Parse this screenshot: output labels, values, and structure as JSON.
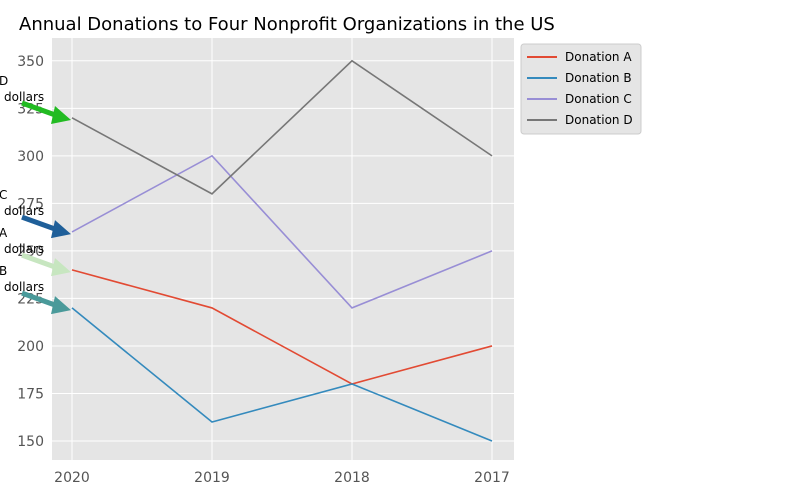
{
  "chart_data": {
    "type": "line",
    "title": "Annual Donations to Four Nonprofit Organizations in the US",
    "xlabel": "",
    "ylabel": "",
    "categories": [
      "2020",
      "2019",
      "2018",
      "2017"
    ],
    "ylim": [
      140,
      362
    ],
    "yticks": [
      150,
      175,
      200,
      225,
      250,
      275,
      300,
      325,
      350
    ],
    "grid": true,
    "legend_position": "outside upper right",
    "series": [
      {
        "name": "Donation A",
        "values": [
          240,
          220,
          180,
          200
        ],
        "color": "#E24A33"
      },
      {
        "name": "Donation B",
        "values": [
          220,
          160,
          180,
          150
        ],
        "color": "#348ABD"
      },
      {
        "name": "Donation C",
        "values": [
          260,
          300,
          220,
          250
        ],
        "color": "#988ED5"
      },
      {
        "name": "Donation D",
        "values": [
          320,
          280,
          350,
          300
        ],
        "color": "#777777"
      }
    ],
    "annotations": [
      {
        "lines": [
          "D",
          "dollars"
        ],
        "y": 322,
        "arrow_color": "#22bb22"
      },
      {
        "lines": [
          "C",
          "dollars"
        ],
        "y": 262,
        "arrow_color": "#1f5f99"
      },
      {
        "lines": [
          "A",
          "dollars"
        ],
        "y": 242,
        "arrow_color": "#c7e6c0"
      },
      {
        "lines": [
          "B",
          "dollars"
        ],
        "y": 222,
        "arrow_color": "#4a9a9a"
      }
    ]
  }
}
